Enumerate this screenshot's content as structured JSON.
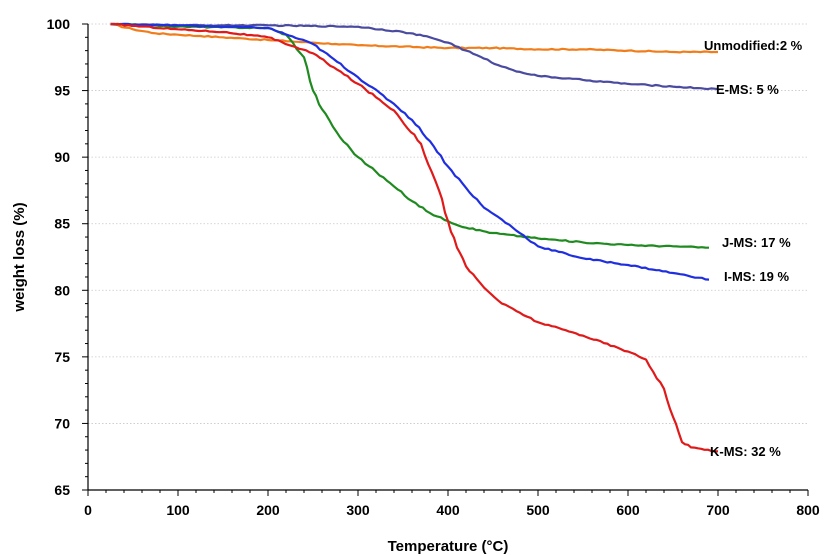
{
  "chart_data": {
    "type": "line",
    "title": "",
    "xlabel": "Temperature (°C)",
    "ylabel": "weight loss (%)",
    "xlim": [
      0,
      800
    ],
    "ylim": [
      65,
      100
    ],
    "xticks": [
      0,
      100,
      200,
      300,
      400,
      500,
      600,
      700,
      800
    ],
    "yticks": [
      65,
      70,
      75,
      80,
      85,
      90,
      95,
      100
    ],
    "grid": "horizontal",
    "legend": "inline labels at line ends",
    "series": [
      {
        "name": "Unmodified",
        "label": "Unmodified:2 %",
        "color": "#f07d1a",
        "x": [
          25,
          50,
          75,
          100,
          125,
          150,
          175,
          200,
          225,
          250,
          275,
          300,
          350,
          400,
          450,
          500,
          550,
          600,
          650,
          700
        ],
        "y": [
          100,
          99.6,
          99.3,
          99.2,
          99.1,
          99.0,
          98.9,
          98.8,
          98.7,
          98.6,
          98.5,
          98.4,
          98.3,
          98.2,
          98.2,
          98.1,
          98.1,
          98.0,
          97.9,
          97.9
        ]
      },
      {
        "name": "E-MS",
        "label": "E-MS: 5 %",
        "color": "#4a4aa0",
        "x": [
          25,
          100,
          200,
          300,
          350,
          380,
          400,
          420,
          440,
          460,
          480,
          500,
          550,
          600,
          650,
          700
        ],
        "y": [
          100,
          99.9,
          99.9,
          99.8,
          99.4,
          99.0,
          98.6,
          98.0,
          97.4,
          96.8,
          96.4,
          96.1,
          95.8,
          95.5,
          95.3,
          95.1
        ]
      },
      {
        "name": "J-MS",
        "label": "J-MS: 17 %",
        "color": "#1f8a1f",
        "x": [
          25,
          100,
          200,
          220,
          240,
          250,
          260,
          280,
          300,
          320,
          340,
          360,
          380,
          400,
          420,
          450,
          500,
          550,
          600,
          650,
          690
        ],
        "y": [
          100,
          99.8,
          99.7,
          99.2,
          97.5,
          95.0,
          93.6,
          91.5,
          90.0,
          88.9,
          87.8,
          86.7,
          85.8,
          85.2,
          84.7,
          84.3,
          83.9,
          83.6,
          83.4,
          83.3,
          83.2
        ]
      },
      {
        "name": "I-MS",
        "label": "I-MS: 19 %",
        "color": "#1f2fe0",
        "x": [
          25,
          100,
          200,
          250,
          300,
          340,
          360,
          380,
          400,
          420,
          440,
          460,
          500,
          550,
          600,
          650,
          690
        ],
        "y": [
          100,
          99.9,
          99.7,
          98.5,
          96.0,
          94.0,
          92.8,
          91.2,
          89.3,
          87.7,
          86.2,
          85.3,
          83.3,
          82.4,
          81.9,
          81.3,
          80.8
        ]
      },
      {
        "name": "K-MS",
        "label": "K-MS: 32 %",
        "color": "#e01a1a",
        "x": [
          25,
          100,
          150,
          200,
          250,
          300,
          340,
          370,
          390,
          400,
          410,
          420,
          440,
          460,
          500,
          550,
          600,
          620,
          640,
          650,
          660,
          670,
          700
        ],
        "y": [
          100,
          99.6,
          99.4,
          99.0,
          97.8,
          95.5,
          93.5,
          91.0,
          87.5,
          85.2,
          83.2,
          81.8,
          80.2,
          79.0,
          77.6,
          76.6,
          75.4,
          74.8,
          72.6,
          70.5,
          68.6,
          68.2,
          67.9
        ]
      }
    ]
  }
}
